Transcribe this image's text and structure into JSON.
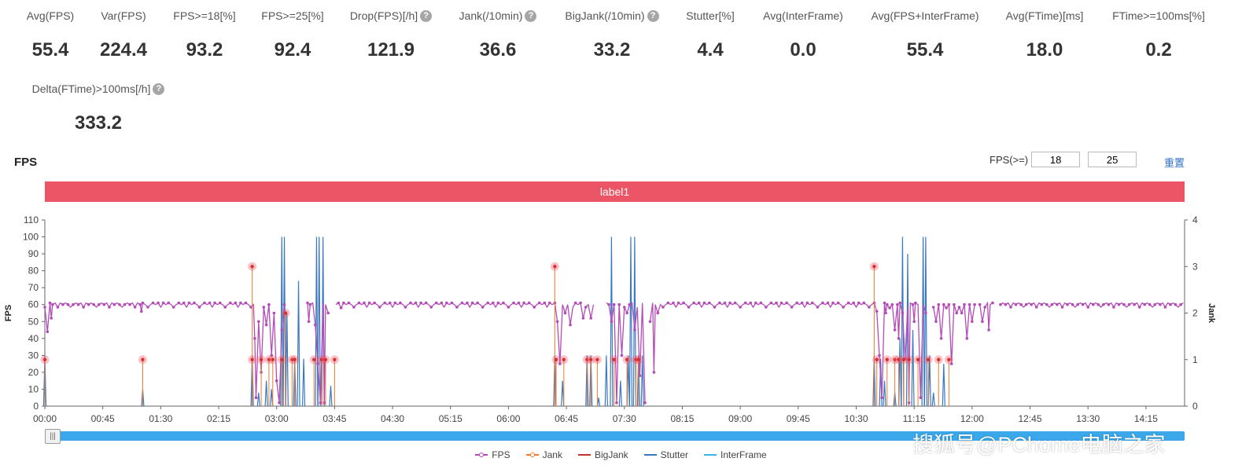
{
  "metrics_row1": [
    {
      "label": "Avg(FPS)",
      "value": "55.4",
      "help": false
    },
    {
      "label": "Var(FPS)",
      "value": "224.4",
      "help": false
    },
    {
      "label": "FPS>=18[%]",
      "value": "93.2",
      "help": false
    },
    {
      "label": "FPS>=25[%]",
      "value": "92.4",
      "help": false
    },
    {
      "label": "Drop(FPS)[/h]",
      "value": "121.9",
      "help": true
    },
    {
      "label": "Jank(/10min)",
      "value": "36.6",
      "help": true
    },
    {
      "label": "BigJank(/10min)",
      "value": "33.2",
      "help": true
    },
    {
      "label": "Stutter[%]",
      "value": "4.4",
      "help": false
    },
    {
      "label": "Avg(InterFrame)",
      "value": "0.0",
      "help": false
    },
    {
      "label": "Avg(FPS+InterFrame)",
      "value": "55.4",
      "help": false
    },
    {
      "label": "Avg(FTime)[ms]",
      "value": "18.0",
      "help": false
    },
    {
      "label": "FTime>=100ms[%]",
      "value": "0.2",
      "help": false
    }
  ],
  "metrics_row2": [
    {
      "label": "Delta(FTime)>100ms[/h]",
      "value": "333.2",
      "help": true
    }
  ],
  "help_glyph": "?",
  "chart_title": "FPS",
  "fps_filter": {
    "label": "FPS(>=)",
    "threshold_1": "18",
    "threshold_2": "25"
  },
  "reset_label": "重置",
  "label_bar": "label1",
  "slider_handle_glyph": "|||",
  "legend": [
    {
      "name": "FPS",
      "color": "#b44bb7",
      "marker": true
    },
    {
      "name": "Jank",
      "color": "#f07a2c",
      "marker": true
    },
    {
      "name": "BigJank",
      "color": "#c9302c",
      "marker": false
    },
    {
      "name": "Stutter",
      "color": "#3b78c3",
      "marker": false
    },
    {
      "name": "InterFrame",
      "color": "#35b6e8",
      "marker": false
    }
  ],
  "watermark": "搜狐号@PChome电脑之家",
  "chart_data": {
    "type": "line",
    "ylabel": "FPS",
    "y2label": "Jank",
    "ylim": [
      0,
      110
    ],
    "y_ticks": [
      "0",
      "10",
      "20",
      "30",
      "40",
      "50",
      "60",
      "70",
      "80",
      "90",
      "100",
      "110"
    ],
    "y2lim": [
      0,
      4
    ],
    "y2_ticks": [
      "0",
      "1",
      "2",
      "3",
      "4"
    ],
    "xlim_minutes": [
      0,
      885
    ],
    "x_ticks": [
      "00:00",
      "00:45",
      "01:30",
      "02:15",
      "03:00",
      "03:45",
      "04:30",
      "05:15",
      "06:00",
      "06:45",
      "07:30",
      "08:15",
      "09:00",
      "09:45",
      "10:30",
      "11:15",
      "12:00",
      "12:45",
      "13:30",
      "14:15"
    ],
    "grid": false,
    "legend_position": "bottom",
    "fps_baseline": 60,
    "fps_dips": [
      {
        "t": 2,
        "v": 44
      },
      {
        "t": 5,
        "v": 52
      },
      {
        "t": 75,
        "v": 56
      },
      {
        "t": 163,
        "v": 40
      },
      {
        "t": 164,
        "v": 5
      },
      {
        "t": 166,
        "v": 50
      },
      {
        "t": 168,
        "v": 20
      },
      {
        "t": 172,
        "v": 48
      },
      {
        "t": 176,
        "v": 30
      },
      {
        "t": 178,
        "v": 55
      },
      {
        "t": 180,
        "v": 15
      },
      {
        "t": 182,
        "v": 2
      },
      {
        "t": 184,
        "v": 45
      },
      {
        "t": 188,
        "v": 55
      },
      {
        "t": 192,
        "v": 2
      },
      {
        "t": 196,
        "v": 38
      },
      {
        "t": 200,
        "v": 55
      },
      {
        "t": 205,
        "v": 50
      },
      {
        "t": 210,
        "v": 48
      },
      {
        "t": 212,
        "v": 25
      },
      {
        "t": 214,
        "v": 2
      },
      {
        "t": 217,
        "v": 2
      },
      {
        "t": 220,
        "v": 55
      },
      {
        "t": 230,
        "v": 58
      },
      {
        "t": 398,
        "v": 50
      },
      {
        "t": 400,
        "v": 25
      },
      {
        "t": 404,
        "v": 55
      },
      {
        "t": 408,
        "v": 48
      },
      {
        "t": 418,
        "v": 52
      },
      {
        "t": 424,
        "v": 52
      },
      {
        "t": 430,
        "v": 45
      },
      {
        "t": 432,
        "v": 18
      },
      {
        "t": 434,
        "v": 2
      },
      {
        "t": 440,
        "v": 50
      },
      {
        "t": 444,
        "v": 2
      },
      {
        "t": 448,
        "v": 30
      },
      {
        "t": 452,
        "v": 55
      },
      {
        "t": 458,
        "v": 45
      },
      {
        "t": 462,
        "v": 18
      },
      {
        "t": 466,
        "v": 2
      },
      {
        "t": 470,
        "v": 50
      },
      {
        "t": 473,
        "v": 20
      },
      {
        "t": 476,
        "v": 55
      },
      {
        "t": 646,
        "v": 56
      },
      {
        "t": 648,
        "v": 30
      },
      {
        "t": 650,
        "v": 5
      },
      {
        "t": 653,
        "v": 55
      },
      {
        "t": 656,
        "v": 58
      },
      {
        "t": 660,
        "v": 45
      },
      {
        "t": 663,
        "v": 40
      },
      {
        "t": 666,
        "v": 55
      },
      {
        "t": 668,
        "v": 28
      },
      {
        "t": 671,
        "v": 2
      },
      {
        "t": 675,
        "v": 50
      },
      {
        "t": 680,
        "v": 5
      },
      {
        "t": 684,
        "v": 55
      },
      {
        "t": 688,
        "v": 30
      },
      {
        "t": 692,
        "v": 50
      },
      {
        "t": 696,
        "v": 40
      },
      {
        "t": 700,
        "v": 58
      },
      {
        "t": 704,
        "v": 25
      },
      {
        "t": 708,
        "v": 55
      },
      {
        "t": 712,
        "v": 55
      },
      {
        "t": 716,
        "v": 40
      },
      {
        "t": 720,
        "v": 50
      },
      {
        "t": 724,
        "v": 2
      },
      {
        "t": 728,
        "v": 50
      },
      {
        "t": 733,
        "v": 45
      },
      {
        "t": 738,
        "v": 55
      }
    ],
    "fps_gaps": [
      [
        186,
        204
      ],
      [
        221,
        226
      ],
      [
        426,
        436
      ],
      [
        466,
        470
      ],
      [
        684,
        690
      ],
      [
        722,
        726
      ],
      [
        737,
        741
      ]
    ],
    "jank_points": [
      {
        "t": 0,
        "v": 1
      },
      {
        "t": 76,
        "v": 1
      },
      {
        "t": 161,
        "v": 3
      },
      {
        "t": 161,
        "v": 1
      },
      {
        "t": 168,
        "v": 1
      },
      {
        "t": 174,
        "v": 1
      },
      {
        "t": 177,
        "v": 1
      },
      {
        "t": 184,
        "v": 1
      },
      {
        "t": 187,
        "v": 2
      },
      {
        "t": 192,
        "v": 1
      },
      {
        "t": 194,
        "v": 1
      },
      {
        "t": 209,
        "v": 1
      },
      {
        "t": 215,
        "v": 1
      },
      {
        "t": 218,
        "v": 1
      },
      {
        "t": 225,
        "v": 1
      },
      {
        "t": 396,
        "v": 3
      },
      {
        "t": 397,
        "v": 1
      },
      {
        "t": 403,
        "v": 1
      },
      {
        "t": 421,
        "v": 1
      },
      {
        "t": 424,
        "v": 1
      },
      {
        "t": 429,
        "v": 1
      },
      {
        "t": 442,
        "v": 1
      },
      {
        "t": 452,
        "v": 1
      },
      {
        "t": 459,
        "v": 1
      },
      {
        "t": 461,
        "v": 1
      },
      {
        "t": 644,
        "v": 3
      },
      {
        "t": 646,
        "v": 1
      },
      {
        "t": 654,
        "v": 1
      },
      {
        "t": 660,
        "v": 1
      },
      {
        "t": 663,
        "v": 1
      },
      {
        "t": 667,
        "v": 1
      },
      {
        "t": 671,
        "v": 1
      },
      {
        "t": 678,
        "v": 1
      },
      {
        "t": 686,
        "v": 1
      },
      {
        "t": 694,
        "v": 1
      },
      {
        "t": 702,
        "v": 1
      }
    ],
    "stutter_spikes": [
      {
        "t": 0,
        "v": 30
      },
      {
        "t": 76,
        "v": 10
      },
      {
        "t": 161,
        "v": 30
      },
      {
        "t": 166,
        "v": 8
      },
      {
        "t": 172,
        "v": 15
      },
      {
        "t": 176,
        "v": 10
      },
      {
        "t": 184,
        "v": 100
      },
      {
        "t": 186,
        "v": 100
      },
      {
        "t": 188,
        "v": 55
      },
      {
        "t": 194,
        "v": 28
      },
      {
        "t": 197,
        "v": 74
      },
      {
        "t": 201,
        "v": 28
      },
      {
        "t": 211,
        "v": 100
      },
      {
        "t": 213,
        "v": 100
      },
      {
        "t": 216,
        "v": 100
      },
      {
        "t": 222,
        "v": 12
      },
      {
        "t": 396,
        "v": 30
      },
      {
        "t": 402,
        "v": 15
      },
      {
        "t": 421,
        "v": 30
      },
      {
        "t": 424,
        "v": 30
      },
      {
        "t": 430,
        "v": 5
      },
      {
        "t": 436,
        "v": 30
      },
      {
        "t": 440,
        "v": 100
      },
      {
        "t": 447,
        "v": 15
      },
      {
        "t": 453,
        "v": 30
      },
      {
        "t": 455,
        "v": 100
      },
      {
        "t": 458,
        "v": 100
      },
      {
        "t": 461,
        "v": 30
      },
      {
        "t": 464,
        "v": 30
      },
      {
        "t": 644,
        "v": 30
      },
      {
        "t": 649,
        "v": 28
      },
      {
        "t": 652,
        "v": 15
      },
      {
        "t": 660,
        "v": 8
      },
      {
        "t": 664,
        "v": 40
      },
      {
        "t": 666,
        "v": 100
      },
      {
        "t": 670,
        "v": 90
      },
      {
        "t": 674,
        "v": 45
      },
      {
        "t": 682,
        "v": 100
      },
      {
        "t": 684,
        "v": 100
      },
      {
        "t": 687,
        "v": 30
      },
      {
        "t": 690,
        "v": 8
      },
      {
        "t": 698,
        "v": 25
      }
    ]
  }
}
